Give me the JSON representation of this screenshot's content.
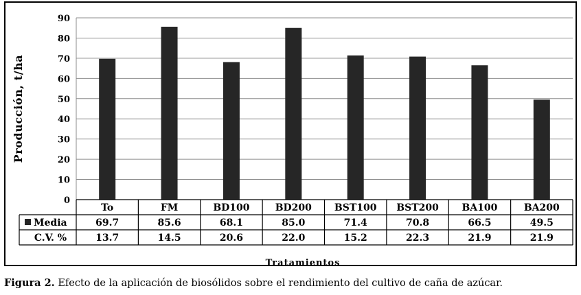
{
  "chart_data": {
    "type": "bar",
    "categories": [
      "To",
      "FM",
      "BD100",
      "BD200",
      "BST100",
      "BST200",
      "BA100",
      "BA200"
    ],
    "series": [
      {
        "name": "Media",
        "values": [
          69.7,
          85.6,
          68.1,
          85.0,
          71.4,
          70.8,
          66.5,
          49.5
        ]
      }
    ],
    "table_rows": [
      {
        "label": "Media",
        "values": [
          "69.7",
          "85.6",
          "68.1",
          "85.0",
          "71.4",
          "70.8",
          "66.5",
          "49.5"
        ]
      },
      {
        "label": "C.V. %",
        "values": [
          "13.7",
          "14.5",
          "20.6",
          "22.0",
          "15.2",
          "22.3",
          "21.9",
          "21.9"
        ]
      }
    ],
    "ylabel": "Producción, t/ha",
    "xlabel": "Tratamientos",
    "ylim": [
      0,
      90
    ],
    "yticks": [
      0,
      10,
      20,
      30,
      40,
      50,
      60,
      70,
      80,
      90
    ],
    "grid": true,
    "bar_color": "#262626"
  },
  "caption": {
    "label": "Figura 2.",
    "text": " Efecto de la aplicación de biosólidos sobre el rendimiento del cultivo de caña de azúcar."
  }
}
